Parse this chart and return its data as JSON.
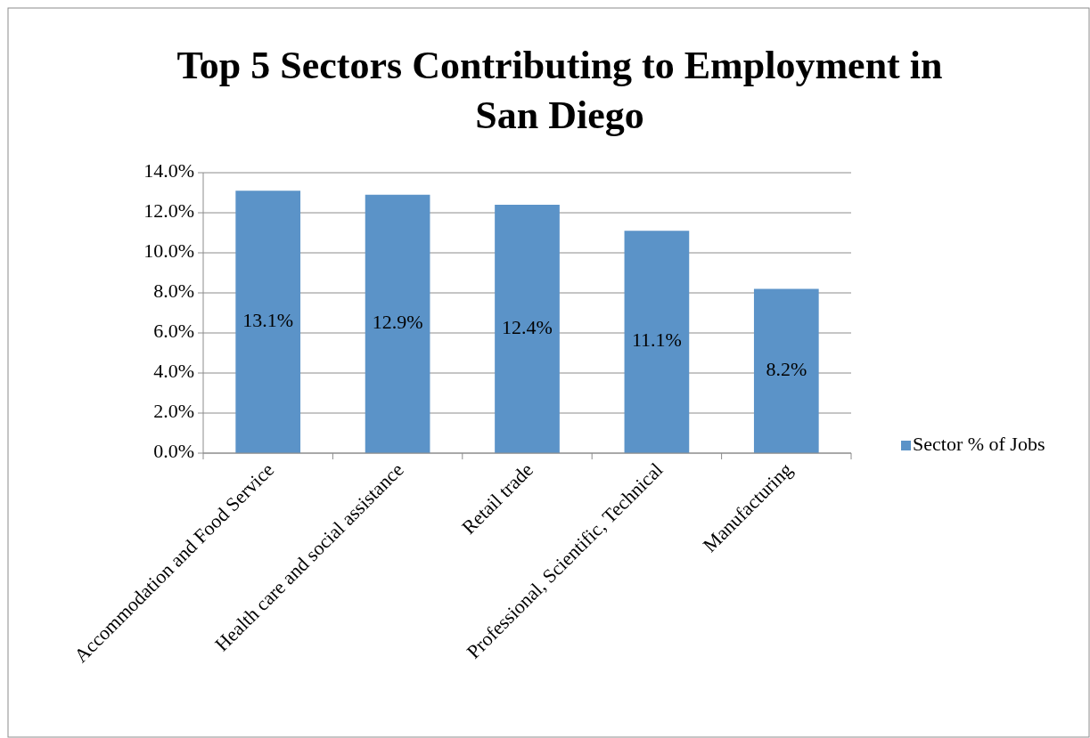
{
  "chart_data": {
    "type": "bar",
    "title": "Top 5 Sectors Contributing to Employment in San Diego",
    "categories": [
      "Accommodation and Food Service",
      "Health care and social assistance",
      "Retail trade",
      "Professional, Scientific, Technical",
      "Manufacturing"
    ],
    "series": [
      {
        "name": "Sector % of Jobs",
        "color": "#5b93c8",
        "values": [
          13.1,
          12.9,
          12.4,
          11.1,
          8.2
        ],
        "value_labels": [
          "13.1%",
          "12.9%",
          "12.4%",
          "11.1%",
          "8.2%"
        ]
      }
    ],
    "ylim": [
      0,
      14
    ],
    "yticks": [
      {
        "value": 0,
        "label": "0.0%"
      },
      {
        "value": 2,
        "label": "2.0%"
      },
      {
        "value": 4,
        "label": "4.0%"
      },
      {
        "value": 6,
        "label": "6.0%"
      },
      {
        "value": 8,
        "label": "8.0%"
      },
      {
        "value": 10,
        "label": "10.0%"
      },
      {
        "value": 12,
        "label": "12.0%"
      },
      {
        "value": 14,
        "label": "14.0%"
      }
    ],
    "grid": "y",
    "legend": "right"
  }
}
